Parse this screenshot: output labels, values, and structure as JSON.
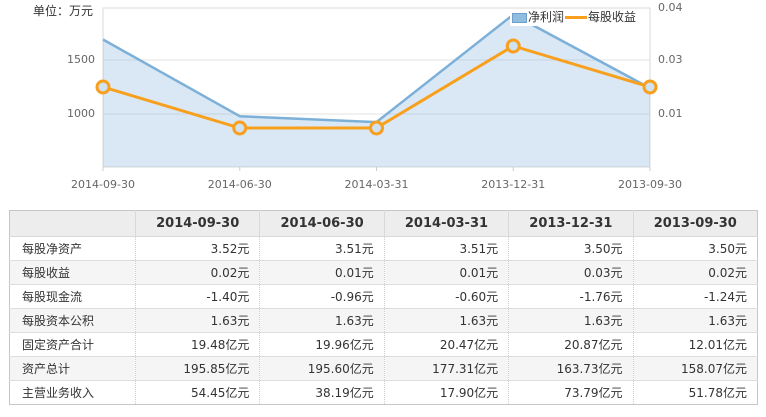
{
  "unit_label": "单位：万元",
  "colors": {
    "net_profit_line": "#7cb0d9",
    "net_profit_area": "#dbe8f4",
    "eps_line": "#f8a01e",
    "marker_fill": "#cfe2f2",
    "grid_line": "#e3e3e3",
    "plot_border": "#d9d9d9",
    "axis_text": "#666666",
    "header_bg": "#ededed",
    "stripe_bg": "#f5f5f5"
  },
  "chart_data": {
    "type": "line",
    "title": "",
    "xlabel": "",
    "ylabel_left_unit": "万元",
    "categories": [
      "2014-09-30",
      "2014-06-30",
      "2014-03-31",
      "2013-12-31",
      "2013-09-30"
    ],
    "series": [
      {
        "name": "净利润",
        "style": "area",
        "unit": "万元",
        "values": [
          1690,
          980,
          925,
          1920,
          1240
        ]
      },
      {
        "name": "每股收益",
        "style": "line",
        "unit": "元",
        "values": [
          0.02,
          0.01,
          0.01,
          0.03,
          0.02
        ]
      }
    ],
    "left_axis_ticks": [
      "1500",
      "1000"
    ],
    "right_axis_ticks": [
      "0.04",
      "0.03",
      "0.01"
    ],
    "left_axis_range": [
      500,
      2000
    ],
    "right_axis_range": [
      0,
      0.04
    ],
    "grid": true,
    "legend_position": "top-right"
  },
  "table": {
    "header_dates": [
      "2014-09-30",
      "2014-06-30",
      "2014-03-31",
      "2013-12-31",
      "2013-09-30"
    ],
    "rows": [
      {
        "label": "每股净资产",
        "values": [
          "3.52元",
          "3.51元",
          "3.51元",
          "3.50元",
          "3.50元"
        ]
      },
      {
        "label": "每股收益",
        "values": [
          "0.02元",
          "0.01元",
          "0.01元",
          "0.03元",
          "0.02元"
        ]
      },
      {
        "label": "每股现金流",
        "values": [
          "-1.40元",
          "-0.96元",
          "-0.60元",
          "-1.76元",
          "-1.24元"
        ]
      },
      {
        "label": "每股资本公积",
        "values": [
          "1.63元",
          "1.63元",
          "1.63元",
          "1.63元",
          "1.63元"
        ]
      },
      {
        "label": "固定资产合计",
        "values": [
          "19.48亿元",
          "19.96亿元",
          "20.47亿元",
          "20.87亿元",
          "12.01亿元"
        ]
      },
      {
        "label": "资产总计",
        "values": [
          "195.85亿元",
          "195.60亿元",
          "177.31亿元",
          "163.73亿元",
          "158.07亿元"
        ]
      },
      {
        "label": "主营业务收入",
        "values": [
          "54.45亿元",
          "38.19亿元",
          "17.90亿元",
          "73.79亿元",
          "51.78亿元"
        ]
      }
    ]
  }
}
